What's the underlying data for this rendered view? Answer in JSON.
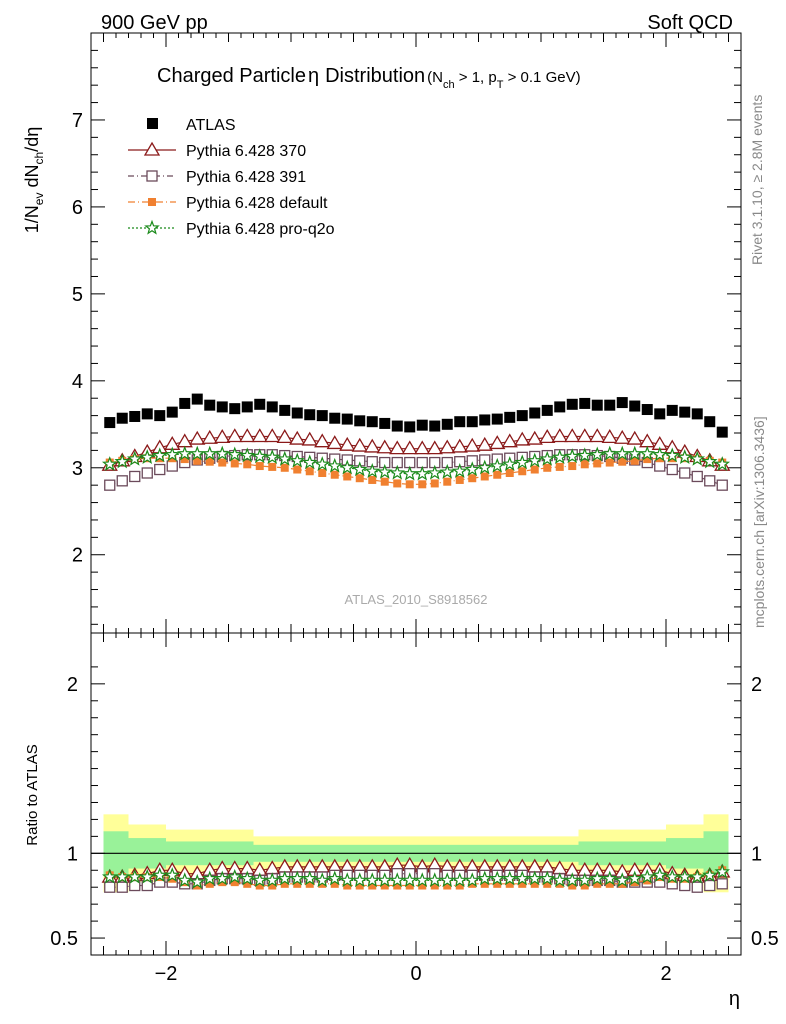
{
  "header": {
    "left": "900 GeV pp",
    "right": "Soft QCD"
  },
  "side": {
    "rivet": "Rivet 3.1.10, ≥ 2.8M events",
    "mcplots": "mcplots.cern.ch [arXiv:1306.3436]"
  },
  "watermark": "ATLAS_2010_S8918562",
  "chart_data": [
    {
      "type": "scatter",
      "title": "Charged Particle η Distribution",
      "title_parts": {
        "main": "Charged Particle",
        "eta": "η",
        "dist": "Distribution",
        "cut_open": "(N",
        "cut_ch": "ch",
        "cut_mid": " > 1, p",
        "cut_t": "T",
        "cut_end": " > 0.1 GeV)"
      },
      "ylabel": "1/Nev dNch/dη",
      "ylabel_parts": {
        "a": "1/N",
        "ev": "ev",
        "b": " dN",
        "ch": "ch",
        "c": "/dη"
      },
      "xlim": [
        -2.6,
        2.6
      ],
      "ylim": [
        1.1,
        8.0
      ],
      "yticks": [
        2,
        3,
        4,
        5,
        6,
        7
      ],
      "ytick_labels": [
        "2",
        "3",
        "4",
        "5",
        "6",
        "7"
      ],
      "legend_position": "top-left",
      "x": [
        -2.45,
        -2.35,
        -2.25,
        -2.15,
        -2.05,
        -1.95,
        -1.85,
        -1.75,
        -1.65,
        -1.55,
        -1.45,
        -1.35,
        -1.25,
        -1.15,
        -1.05,
        -0.95,
        -0.85,
        -0.75,
        -0.65,
        -0.55,
        -0.45,
        -0.35,
        -0.25,
        -0.15,
        -0.05,
        0.05,
        0.15,
        0.25,
        0.35,
        0.45,
        0.55,
        0.65,
        0.75,
        0.85,
        0.95,
        1.05,
        1.15,
        1.25,
        1.35,
        1.45,
        1.55,
        1.65,
        1.75,
        1.85,
        1.95,
        2.05,
        2.15,
        2.25,
        2.35,
        2.45
      ],
      "series": [
        {
          "name": "ATLAS",
          "marker": "filled-square",
          "color": "#000000",
          "values": [
            3.52,
            3.57,
            3.59,
            3.62,
            3.6,
            3.64,
            3.74,
            3.79,
            3.72,
            3.7,
            3.68,
            3.7,
            3.73,
            3.7,
            3.66,
            3.63,
            3.61,
            3.6,
            3.57,
            3.56,
            3.54,
            3.53,
            3.51,
            3.48,
            3.47,
            3.49,
            3.48,
            3.5,
            3.53,
            3.53,
            3.55,
            3.56,
            3.58,
            3.6,
            3.63,
            3.66,
            3.7,
            3.73,
            3.74,
            3.72,
            3.72,
            3.75,
            3.71,
            3.67,
            3.62,
            3.66,
            3.64,
            3.62,
            3.53,
            3.41
          ]
        },
        {
          "name": "Pythia 6.428 370",
          "marker": "open-triangle",
          "color": "#8b1a1a",
          "values": [
            3.03,
            3.08,
            3.13,
            3.18,
            3.23,
            3.27,
            3.3,
            3.33,
            3.34,
            3.35,
            3.36,
            3.36,
            3.36,
            3.36,
            3.35,
            3.33,
            3.32,
            3.3,
            3.28,
            3.26,
            3.25,
            3.24,
            3.23,
            3.22,
            3.22,
            3.22,
            3.22,
            3.23,
            3.24,
            3.25,
            3.26,
            3.28,
            3.3,
            3.32,
            3.33,
            3.35,
            3.36,
            3.36,
            3.36,
            3.36,
            3.35,
            3.34,
            3.33,
            3.3,
            3.27,
            3.23,
            3.18,
            3.13,
            3.08,
            3.03
          ]
        },
        {
          "name": "Pythia 6.428 391",
          "marker": "open-square",
          "color": "#6b4a5b",
          "values": [
            2.8,
            2.85,
            2.9,
            2.94,
            2.98,
            3.02,
            3.06,
            3.09,
            3.11,
            3.13,
            3.14,
            3.15,
            3.15,
            3.15,
            3.14,
            3.13,
            3.12,
            3.11,
            3.1,
            3.09,
            3.08,
            3.07,
            3.06,
            3.06,
            3.06,
            3.06,
            3.06,
            3.06,
            3.07,
            3.08,
            3.09,
            3.1,
            3.11,
            3.12,
            3.13,
            3.14,
            3.15,
            3.15,
            3.15,
            3.14,
            3.13,
            3.11,
            3.09,
            3.06,
            3.02,
            2.98,
            2.94,
            2.9,
            2.85,
            2.8
          ]
        },
        {
          "name": "Pythia 6.428 default",
          "marker": "filled-square-small",
          "color": "#f08030",
          "values": [
            3.06,
            3.08,
            3.1,
            3.11,
            3.11,
            3.11,
            3.1,
            3.08,
            3.07,
            3.06,
            3.05,
            3.04,
            3.02,
            3.01,
            3.0,
            2.98,
            2.96,
            2.94,
            2.92,
            2.9,
            2.88,
            2.86,
            2.84,
            2.82,
            2.81,
            2.81,
            2.82,
            2.84,
            2.86,
            2.88,
            2.9,
            2.92,
            2.94,
            2.96,
            2.98,
            3.0,
            3.01,
            3.02,
            3.04,
            3.05,
            3.06,
            3.07,
            3.08,
            3.1,
            3.11,
            3.11,
            3.11,
            3.1,
            3.08,
            3.06
          ]
        },
        {
          "name": "Pythia 6.428 pro-q2o",
          "marker": "open-star",
          "color": "#1a8a1a",
          "values": [
            3.04,
            3.07,
            3.1,
            3.12,
            3.14,
            3.15,
            3.16,
            3.16,
            3.16,
            3.16,
            3.15,
            3.14,
            3.13,
            3.12,
            3.1,
            3.08,
            3.06,
            3.04,
            3.02,
            3.0,
            2.98,
            2.96,
            2.95,
            2.94,
            2.93,
            2.93,
            2.94,
            2.95,
            2.96,
            2.98,
            3.0,
            3.02,
            3.04,
            3.06,
            3.08,
            3.1,
            3.12,
            3.13,
            3.14,
            3.15,
            3.16,
            3.16,
            3.16,
            3.16,
            3.15,
            3.14,
            3.12,
            3.1,
            3.07,
            3.04
          ]
        }
      ]
    },
    {
      "type": "scatter",
      "ylabel": "Ratio to ATLAS",
      "xlabel": "η",
      "xlim": [
        -2.6,
        2.6
      ],
      "ylim": [
        0.4,
        2.3
      ],
      "yticks": [
        0.5,
        1,
        2
      ],
      "ytick_labels": [
        "0.5",
        "1",
        "2"
      ],
      "xticks": [
        -2,
        0,
        2
      ],
      "xtick_labels": [
        "−2",
        "0",
        "2"
      ],
      "band_colors": {
        "inner": "#99f299",
        "outer": "#ffff99"
      },
      "band_edges": [
        -2.5,
        -2.3,
        -2.0,
        -1.3,
        1.3,
        2.0,
        2.3,
        2.5
      ],
      "band_inner_halfwidth": [
        0.13,
        0.09,
        0.07,
        0.05,
        0.07,
        0.09,
        0.13
      ],
      "band_outer_halfwidth": [
        0.23,
        0.17,
        0.14,
        0.1,
        0.14,
        0.17,
        0.23
      ],
      "series_ratio": [
        {
          "name": "Pythia 6.428 370",
          "values": [
            0.86,
            0.86,
            0.87,
            0.88,
            0.9,
            0.9,
            0.88,
            0.88,
            0.9,
            0.91,
            0.91,
            0.91,
            0.9,
            0.91,
            0.92,
            0.92,
            0.92,
            0.92,
            0.92,
            0.92,
            0.92,
            0.92,
            0.92,
            0.93,
            0.93,
            0.92,
            0.93,
            0.92,
            0.92,
            0.92,
            0.92,
            0.92,
            0.92,
            0.92,
            0.92,
            0.92,
            0.91,
            0.9,
            0.9,
            0.9,
            0.9,
            0.89,
            0.9,
            0.9,
            0.9,
            0.88,
            0.87,
            0.86,
            0.87,
            0.89
          ]
        },
        {
          "name": "Pythia 6.428 391",
          "values": [
            0.8,
            0.8,
            0.81,
            0.81,
            0.83,
            0.83,
            0.82,
            0.82,
            0.84,
            0.85,
            0.85,
            0.85,
            0.84,
            0.85,
            0.86,
            0.86,
            0.86,
            0.86,
            0.87,
            0.87,
            0.87,
            0.87,
            0.87,
            0.88,
            0.88,
            0.88,
            0.88,
            0.87,
            0.87,
            0.87,
            0.87,
            0.87,
            0.87,
            0.87,
            0.86,
            0.86,
            0.85,
            0.84,
            0.84,
            0.84,
            0.84,
            0.83,
            0.83,
            0.83,
            0.83,
            0.82,
            0.81,
            0.8,
            0.81,
            0.82
          ]
        },
        {
          "name": "Pythia 6.428 default",
          "values": [
            0.87,
            0.86,
            0.86,
            0.86,
            0.86,
            0.85,
            0.83,
            0.81,
            0.82,
            0.83,
            0.83,
            0.82,
            0.81,
            0.81,
            0.82,
            0.82,
            0.82,
            0.82,
            0.82,
            0.81,
            0.81,
            0.81,
            0.81,
            0.81,
            0.81,
            0.81,
            0.81,
            0.81,
            0.81,
            0.82,
            0.82,
            0.82,
            0.82,
            0.82,
            0.82,
            0.82,
            0.82,
            0.81,
            0.81,
            0.82,
            0.82,
            0.82,
            0.83,
            0.84,
            0.86,
            0.85,
            0.85,
            0.86,
            0.87,
            0.9
          ]
        },
        {
          "name": "Pythia 6.428 pro-q2o",
          "values": [
            0.86,
            0.86,
            0.86,
            0.86,
            0.87,
            0.87,
            0.84,
            0.83,
            0.85,
            0.85,
            0.86,
            0.85,
            0.84,
            0.84,
            0.85,
            0.85,
            0.85,
            0.84,
            0.85,
            0.84,
            0.84,
            0.84,
            0.84,
            0.84,
            0.84,
            0.84,
            0.84,
            0.84,
            0.84,
            0.84,
            0.85,
            0.85,
            0.85,
            0.85,
            0.85,
            0.85,
            0.84,
            0.84,
            0.84,
            0.85,
            0.85,
            0.84,
            0.85,
            0.86,
            0.87,
            0.86,
            0.86,
            0.86,
            0.87,
            0.89
          ]
        }
      ]
    }
  ]
}
